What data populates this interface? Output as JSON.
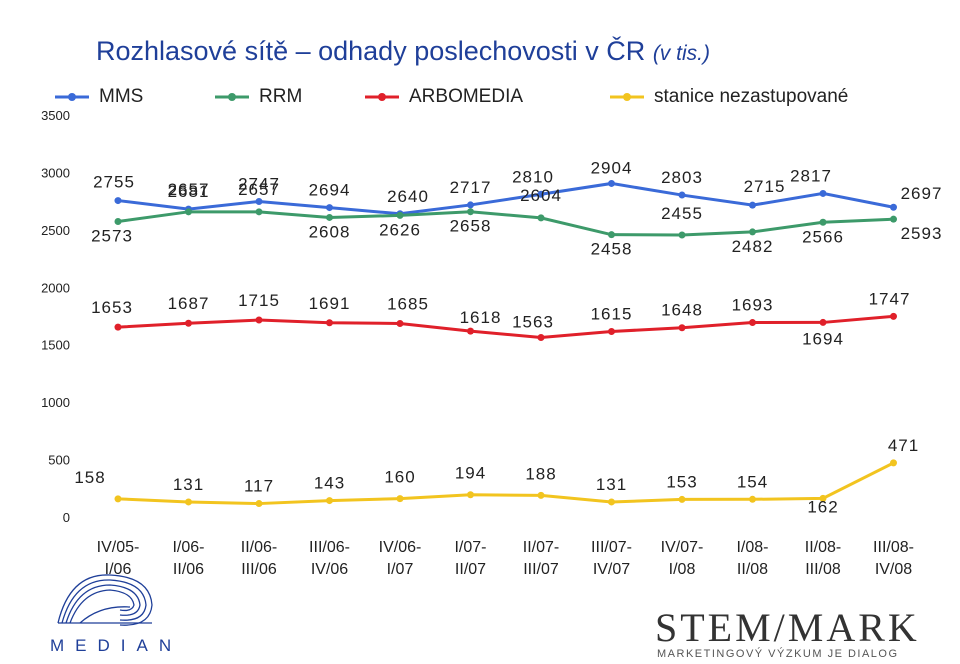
{
  "chart_data": {
    "type": "line",
    "title": "Rozhlasové sítě – odhady poslechovosti v ČR",
    "title_unit": "(v tis.)",
    "ylim": [
      0,
      3500
    ],
    "yticks": [
      "0",
      "500",
      "1000",
      "1500",
      "2000",
      "2500",
      "3000",
      "3500"
    ],
    "grid": false,
    "legend_position": "top",
    "categories": [
      [
        "IV/05-",
        "I/06"
      ],
      [
        "I/06-",
        "II/06"
      ],
      [
        "II/06-",
        "III/06"
      ],
      [
        "III/06-",
        "IV/06"
      ],
      [
        "IV/06-",
        "I/07"
      ],
      [
        "I/07-",
        "II/07"
      ],
      [
        "II/07-",
        "III/07"
      ],
      [
        "III/07-",
        "IV/07"
      ],
      [
        "IV/07-",
        "I/08"
      ],
      [
        "I/08-",
        "II/08"
      ],
      [
        "II/08-",
        "III/08"
      ],
      [
        "III/08-",
        "IV/08"
      ]
    ],
    "series": [
      {
        "name": "MMS",
        "color": "#3a6ad8",
        "values": [
          2755,
          2681,
          2747,
          2694,
          2640,
          2717,
          2810,
          2904,
          2803,
          2715,
          2817,
          2697
        ],
        "labels": [
          "2755",
          "2681",
          "2747",
          "2694",
          "2640",
          "2717",
          "2810",
          "2904",
          "2803",
          "2715",
          "2817",
          "2697"
        ]
      },
      {
        "name": "RRM",
        "color": "#3d9a6a",
        "values": [
          2573,
          2657,
          2657,
          2608,
          2626,
          2658,
          2604,
          2458,
          2455,
          2482,
          2566,
          2593
        ],
        "labels": [
          "2573",
          "2657",
          "2657",
          "2608",
          "2626",
          "2658",
          "2604",
          "2458",
          "2455",
          "2482",
          "2566",
          "2593"
        ]
      },
      {
        "name": "ARBOMEDIA",
        "color": "#e0202a",
        "values": [
          1653,
          1687,
          1715,
          1691,
          1685,
          1618,
          1563,
          1615,
          1648,
          1693,
          1694,
          1747
        ],
        "labels": [
          "1653",
          "1687",
          "1715",
          "1691",
          "1685",
          "1618",
          "1563",
          "1615",
          "1648",
          "1693",
          "1694",
          "1747"
        ]
      },
      {
        "name": "stanice nezastupované",
        "color": "#f2c41f",
        "values": [
          158,
          131,
          117,
          143,
          160,
          194,
          188,
          131,
          153,
          154,
          162,
          471
        ],
        "labels": [
          "158",
          "131",
          "117",
          "143",
          "160",
          "194",
          "188",
          "131",
          "153",
          "154",
          "162",
          "471"
        ]
      }
    ]
  },
  "logos": {
    "median": "MEDIAN",
    "stemmark": "STEM/MARK",
    "stemmark_name": "STEMMARK",
    "stemmark_subtitle": "MARKETINGOVÝ VÝZKUM JE DIALOG"
  }
}
